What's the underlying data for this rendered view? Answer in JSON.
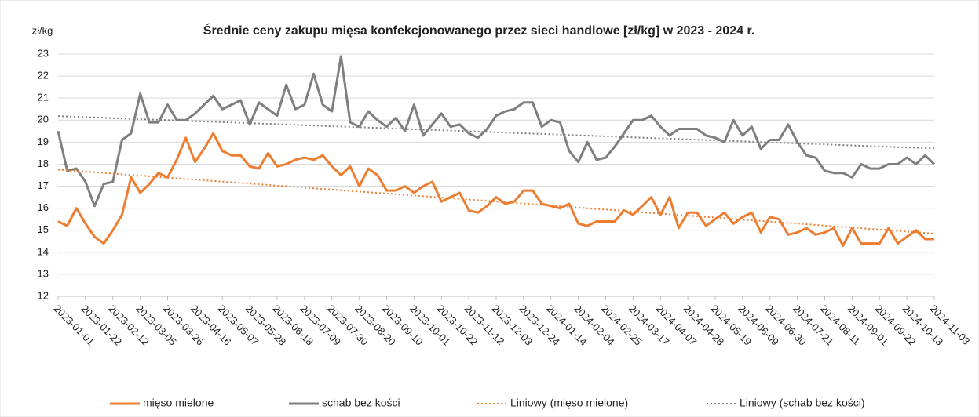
{
  "chart_data": {
    "type": "line",
    "title": "Średnie ceny zakupu mięsa konfekcjonowanego przez sieci handlowe [zł/kg]  w 2023 - 2024 r.",
    "y_label": "zł/kg",
    "categories": [
      "2023-01-01",
      null,
      null,
      "2023-01-22",
      null,
      null,
      "2023-02-12",
      null,
      null,
      "2023-03-05",
      null,
      null,
      "2023-03-26",
      null,
      null,
      "2023-04-16",
      null,
      null,
      "2023-05-07",
      null,
      null,
      "2023-05-28",
      null,
      null,
      "2023-06-18",
      null,
      null,
      "2023-07-09",
      null,
      null,
      "2023-07-30",
      null,
      null,
      "2023-08-20",
      null,
      null,
      "2023-09-10",
      null,
      null,
      "2023-10-01",
      null,
      null,
      "2023-10-22",
      null,
      null,
      "2023-11-12",
      null,
      null,
      "2023-12-03",
      null,
      null,
      "2023-12-24",
      null,
      null,
      "2024-01-14",
      null,
      null,
      "2024-02-04",
      null,
      null,
      "2024-02-25",
      null,
      null,
      "2024-03-17",
      null,
      null,
      "2024-04-07",
      null,
      null,
      "2024-04-28",
      null,
      null,
      "2024-05-19",
      null,
      null,
      "2024-06-09",
      null,
      null,
      "2024-06-30",
      null,
      null,
      "2024-07-21",
      null,
      null,
      "2024-08-11",
      null,
      null,
      "2024-09-01",
      null,
      null,
      "2024-09-22",
      null,
      null,
      "2024-10-13",
      null,
      null,
      "2024-11-03"
    ],
    "series": [
      {
        "name": "mięso mielone",
        "color": "#ed7d31",
        "values": [
          15.4,
          15.2,
          16.0,
          15.3,
          14.7,
          14.4,
          15.0,
          15.7,
          17.4,
          16.7,
          17.1,
          17.6,
          17.4,
          18.2,
          19.2,
          18.1,
          18.7,
          19.4,
          18.6,
          18.4,
          18.4,
          17.9,
          17.8,
          18.5,
          17.9,
          18.0,
          18.2,
          18.3,
          18.2,
          18.4,
          17.9,
          17.5,
          17.9,
          17.0,
          17.8,
          17.5,
          16.8,
          16.8,
          17.0,
          16.7,
          17.0,
          17.2,
          16.3,
          16.5,
          16.7,
          15.9,
          15.8,
          16.1,
          16.5,
          16.2,
          16.3,
          16.8,
          16.8,
          16.2,
          16.1,
          16.0,
          16.2,
          15.3,
          15.2,
          15.4,
          15.4,
          15.4,
          15.9,
          15.7,
          16.1,
          16.5,
          15.7,
          16.5,
          15.1,
          15.8,
          15.8,
          15.2,
          15.5,
          15.8,
          15.3,
          15.6,
          15.8,
          14.9,
          15.6,
          15.5,
          14.8,
          14.9,
          15.1,
          14.8,
          14.9,
          15.1,
          14.3,
          15.1,
          14.4,
          14.4,
          14.4,
          15.1,
          14.4,
          14.7,
          15.0,
          14.6,
          14.6
        ]
      },
      {
        "name": "schab bez kości",
        "color": "#7f7f7f",
        "values": [
          19.5,
          17.7,
          17.8,
          17.2,
          16.1,
          17.1,
          17.2,
          19.1,
          19.4,
          21.2,
          19.9,
          19.9,
          20.7,
          20.0,
          20.0,
          20.3,
          20.7,
          21.1,
          20.5,
          20.7,
          20.9,
          19.8,
          20.8,
          20.5,
          20.2,
          21.6,
          20.5,
          20.7,
          22.1,
          20.7,
          20.4,
          22.9,
          19.9,
          19.7,
          20.4,
          20.0,
          19.7,
          20.1,
          19.5,
          20.7,
          19.3,
          19.8,
          20.3,
          19.7,
          19.8,
          19.4,
          19.2,
          19.6,
          20.2,
          20.4,
          20.5,
          20.8,
          20.8,
          19.7,
          20.0,
          19.9,
          18.6,
          18.1,
          19.0,
          18.2,
          18.3,
          18.8,
          19.4,
          20.0,
          20.0,
          20.2,
          19.7,
          19.3,
          19.6,
          19.6,
          19.6,
          19.3,
          19.2,
          19.0,
          20.0,
          19.3,
          19.7,
          18.7,
          19.1,
          19.1,
          19.8,
          19.0,
          18.4,
          18.3,
          17.7,
          17.6,
          17.6,
          17.4,
          18.0,
          17.8,
          17.8,
          18.0,
          18.0,
          18.3,
          18.0,
          18.4,
          18.0
        ]
      }
    ],
    "trendlines": [
      {
        "name": "Liniowy (mięso mielone)",
        "color": "#ed7d31",
        "series": 0
      },
      {
        "name": "Liniowy (schab bez kości)",
        "color": "#7f7f7f",
        "series": 1
      }
    ],
    "ylim": [
      12,
      23
    ],
    "yticks": [
      12,
      13,
      14,
      15,
      16,
      17,
      18,
      19,
      20,
      21,
      22,
      23
    ],
    "grid": true
  }
}
